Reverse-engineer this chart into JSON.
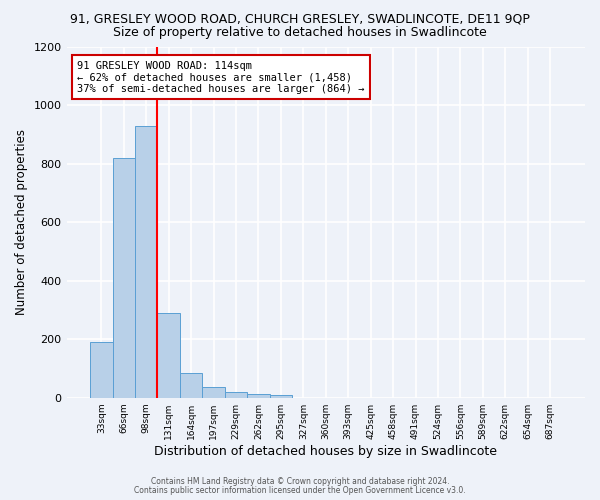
{
  "title_line1": "91, GRESLEY WOOD ROAD, CHURCH GRESLEY, SWADLINCOTE, DE11 9QP",
  "title_line2": "Size of property relative to detached houses in Swadlincote",
  "xlabel": "Distribution of detached houses by size in Swadlincote",
  "ylabel": "Number of detached properties",
  "bar_labels": [
    "33sqm",
    "66sqm",
    "98sqm",
    "131sqm",
    "164sqm",
    "197sqm",
    "229sqm",
    "262sqm",
    "295sqm",
    "327sqm",
    "360sqm",
    "393sqm",
    "425sqm",
    "458sqm",
    "491sqm",
    "524sqm",
    "556sqm",
    "589sqm",
    "622sqm",
    "654sqm",
    "687sqm"
  ],
  "bar_values": [
    190,
    820,
    930,
    290,
    85,
    37,
    18,
    13,
    10,
    0,
    0,
    0,
    0,
    0,
    0,
    0,
    0,
    0,
    0,
    0,
    0
  ],
  "bar_color": "#b8d0e8",
  "bar_edge_color": "#5a9fd4",
  "ylim": [
    0,
    1200
  ],
  "yticks": [
    0,
    200,
    400,
    600,
    800,
    1000,
    1200
  ],
  "red_line_x": 2.5,
  "annotation_line1": "91 GRESLEY WOOD ROAD: 114sqm",
  "annotation_line2": "← 62% of detached houses are smaller (1,458)",
  "annotation_line3": "37% of semi-detached houses are larger (864) →",
  "annotation_box_color": "#ffffff",
  "annotation_edge_color": "#cc0000",
  "footer_line1": "Contains HM Land Registry data © Crown copyright and database right 2024.",
  "footer_line2": "Contains public sector information licensed under the Open Government Licence v3.0.",
  "background_color": "#eef2f9",
  "grid_color": "#ffffff",
  "title_fontsize": 9,
  "subtitle_fontsize": 9,
  "xlabel_fontsize": 9,
  "ylabel_fontsize": 8.5
}
